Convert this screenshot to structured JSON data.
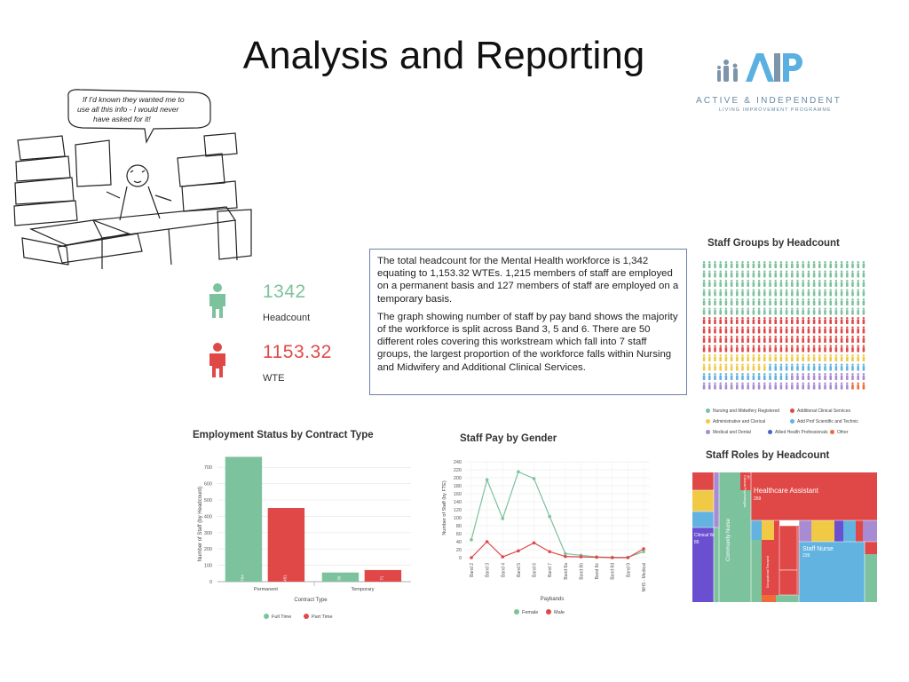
{
  "slide": {
    "title": "Analysis and Reporting"
  },
  "logo": {
    "line1": "ACTIVE & INDEPENDENT",
    "line2": "LIVING IMPROVEMENT PROGRAMME",
    "color": "#6a8aa3"
  },
  "cartoon": {
    "speech": [
      "If I'd known they wanted me to",
      "use all this info - I would never",
      "have asked for it!"
    ]
  },
  "kpis": [
    {
      "value": "1342",
      "label": "Headcount",
      "color": "#7cc29c",
      "icon": "person-icon"
    },
    {
      "value": "1153.32",
      "label": "WTE",
      "color": "#e04848",
      "icon": "person-icon"
    }
  ],
  "summary": {
    "paragraphs": [
      "The total headcount for the Mental Health workforce is 1,342 equating to 1,153.32 WTEs. 1,215 members of staff are employed on a permanent basis and 127 members of staff are employed on a temporary basis.",
      "The graph showing number of staff by pay band shows the majority of the workforce is split across Band 3, 5 and 6. There are 50 different roles covering this workstream which fall into 7 staff groups, the largest proportion of the workforce falls within Nursing and Midwifery and Additional Clinical Services."
    ]
  },
  "chart_data": [
    {
      "type": "bar",
      "title": "Employment Status by Contract Type",
      "xlabel": "Contract Type",
      "ylabel": "Number of Staff (by Headcount)",
      "categories": [
        "Permanent",
        "Temporary"
      ],
      "ylim": [
        0,
        750
      ],
      "yticks": [
        0,
        100,
        200,
        300,
        400,
        500,
        600,
        700
      ],
      "series": [
        {
          "name": "Full Time",
          "color": "#7cc29c",
          "values": [
            764,
            56
          ]
        },
        {
          "name": "Part Time",
          "color": "#e04848",
          "values": [
            451,
            71
          ]
        }
      ],
      "grid": true,
      "legend": "bottom"
    },
    {
      "type": "line",
      "title": "Staff Pay by Gender",
      "xlabel": "Paybands",
      "ylabel": "Number of Staff (by FTE)",
      "categories": [
        "Band 2",
        "Band 3",
        "Band 4",
        "Band 5",
        "Band 6",
        "Band 7",
        "Band 8a",
        "Band 8b",
        "Band 8c",
        "Band 8d",
        "Band 9",
        "NHS - Medical"
      ],
      "ylim": [
        0,
        240
      ],
      "yticks": [
        0,
        20,
        40,
        60,
        80,
        100,
        120,
        140,
        160,
        180,
        200,
        220,
        240
      ],
      "series": [
        {
          "name": "Female",
          "color": "#7cc29c",
          "values": [
            45,
            195,
            98,
            215,
            198,
            103,
            10,
            6,
            2,
            1,
            1,
            15
          ]
        },
        {
          "name": "Male",
          "color": "#e04848",
          "values": [
            0,
            40,
            2,
            17,
            37,
            15,
            3,
            2,
            1,
            0,
            0,
            22
          ]
        }
      ],
      "grid": true,
      "legend": "bottom"
    },
    {
      "type": "waffle",
      "title": "Staff Groups by Headcount",
      "legend": "bottom",
      "groups": [
        {
          "name": "Nursing and Midwifery Registered",
          "color": "#7cc29c",
          "rows": 6
        },
        {
          "name": "Additional Clinical Services",
          "color": "#e04848",
          "rows": 4
        },
        {
          "name": "Administrative and Clerical",
          "color": "#f0c945",
          "rows": 2
        },
        {
          "name": "Add Prof Scientific and Technic",
          "color": "#62b3e0",
          "rows": 1
        },
        {
          "name": "Medical and Dental",
          "color": "#a98bd3",
          "rows": 1
        },
        {
          "name": "Allied Health Professionals",
          "color": "#4a62c7",
          "rows": 0
        },
        {
          "name": "Other",
          "color": "#f06a3a",
          "rows": 0
        }
      ]
    },
    {
      "type": "treemap",
      "title": "Staff Roles by Headcount",
      "tiles": [
        {
          "label": "Healthcare Assistant",
          "value": "269",
          "color": "#e04848"
        },
        {
          "label": "Community Nurse",
          "value": "",
          "color": "#7cc29c"
        },
        {
          "label": "Staff Nurse",
          "value": "239",
          "color": "#62b3e0"
        },
        {
          "label": "Clinical Worker",
          "value": "85",
          "color": "#6b4fd1"
        },
        {
          "label": "Clinical Psychologist",
          "value": "40",
          "color": "#e04848"
        },
        {
          "label": "Occupational Therapist",
          "value": "",
          "color": "#e04848"
        }
      ]
    }
  ]
}
